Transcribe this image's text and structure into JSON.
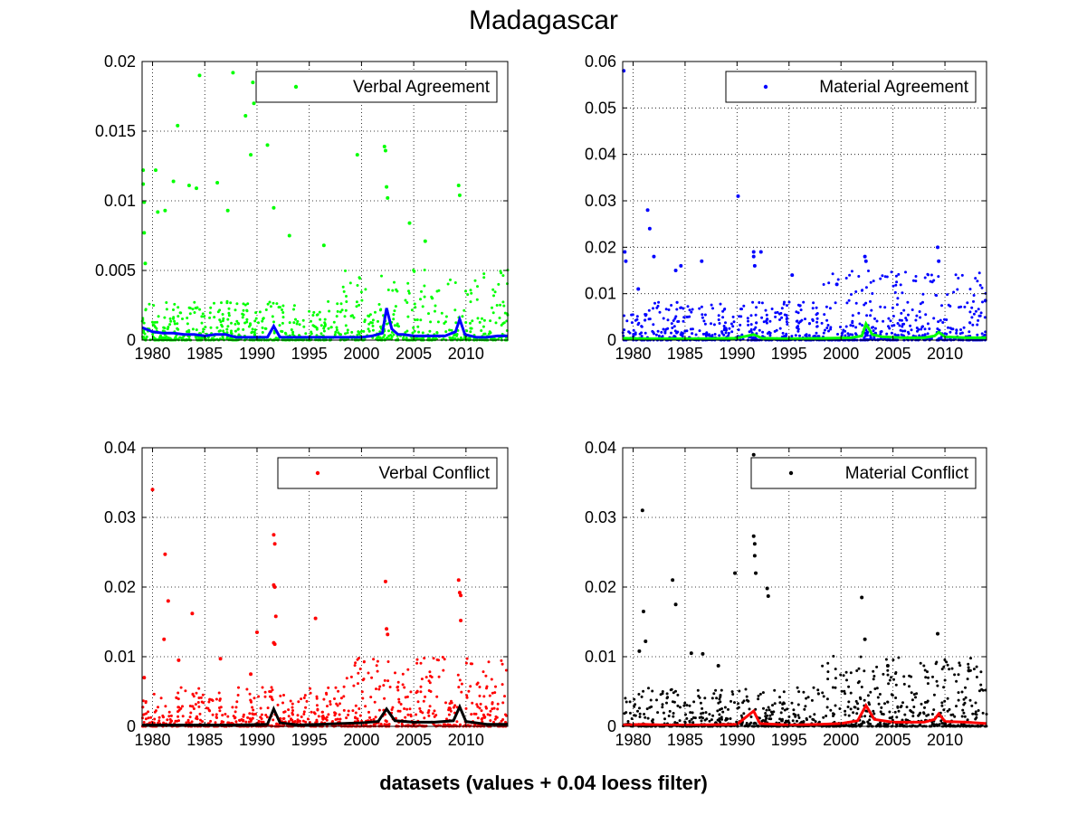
{
  "figure": {
    "title": "Madagascar",
    "xlabel": "datasets (values + 0.04 loess filter)"
  },
  "chart_data": [
    {
      "type": "scatter",
      "legend": "Verbal Agreement",
      "legend_position": "top-right",
      "grid": true,
      "marker_color": "#00ff00",
      "trend_color": "#0000ff",
      "xlim": [
        1979,
        2014
      ],
      "ylim": [
        0,
        0.02
      ],
      "xticks": [
        1980,
        1985,
        1990,
        1995,
        2000,
        2005,
        2010
      ],
      "yticks": [
        0,
        0.005,
        0.01,
        0.015,
        0.02
      ],
      "ytick_labels": [
        "0",
        "0.005",
        "0.01",
        "0.015",
        "0.02"
      ],
      "points": [
        [
          1979.1,
          0.0122
        ],
        [
          1979.1,
          0.0112
        ],
        [
          1979.2,
          0.0099
        ],
        [
          1979.2,
          0.0077
        ],
        [
          1979.3,
          0.0055
        ],
        [
          1980.3,
          0.0122
        ],
        [
          1980.5,
          0.0092
        ],
        [
          1981.2,
          0.0093
        ],
        [
          1982.0,
          0.0114
        ],
        [
          1982.4,
          0.0154
        ],
        [
          1983.5,
          0.0111
        ],
        [
          1984.2,
          0.0109
        ],
        [
          1984.5,
          0.019
        ],
        [
          1986.2,
          0.0113
        ],
        [
          1987.2,
          0.0093
        ],
        [
          1987.7,
          0.0192
        ],
        [
          1988.9,
          0.0161
        ],
        [
          1989.4,
          0.0133
        ],
        [
          1989.6,
          0.0185
        ],
        [
          1989.7,
          0.017
        ],
        [
          1991.0,
          0.014
        ],
        [
          1991.6,
          0.0095
        ],
        [
          1999.6,
          0.0133
        ],
        [
          2002.2,
          0.0139
        ],
        [
          2002.3,
          0.0136
        ],
        [
          2002.4,
          0.011
        ],
        [
          2002.5,
          0.0102
        ],
        [
          2009.3,
          0.0111
        ],
        [
          2009.4,
          0.0104
        ],
        [
          1993.1,
          0.0075
        ],
        [
          1996.4,
          0.0068
        ],
        [
          2004.6,
          0.0084
        ],
        [
          2006.1,
          0.0071
        ]
      ],
      "trend": [
        [
          1979,
          0.0009
        ],
        [
          1980,
          0.0006
        ],
        [
          1981,
          0.0005
        ],
        [
          1982,
          0.0005
        ],
        [
          1983,
          0.0004
        ],
        [
          1984,
          0.0004
        ],
        [
          1985,
          0.0003
        ],
        [
          1986,
          0.0004
        ],
        [
          1987,
          0.0004
        ],
        [
          1988,
          0.0002
        ],
        [
          1989,
          0.0002
        ],
        [
          1990,
          0.0002
        ],
        [
          1991,
          0.0002
        ],
        [
          1991.6,
          0.001
        ],
        [
          1992.2,
          0.0002
        ],
        [
          1993,
          0.0002
        ],
        [
          1994,
          0.0002
        ],
        [
          1995,
          0.0002
        ],
        [
          1996,
          0.0002
        ],
        [
          1997,
          0.0002
        ],
        [
          1998,
          0.0002
        ],
        [
          1999,
          0.0002
        ],
        [
          2000,
          0.0002
        ],
        [
          2001,
          0.0003
        ],
        [
          2002,
          0.0005
        ],
        [
          2002.4,
          0.0023
        ],
        [
          2002.9,
          0.0008
        ],
        [
          2003.5,
          0.0004
        ],
        [
          2004,
          0.0004
        ],
        [
          2005,
          0.0003
        ],
        [
          2006,
          0.0003
        ],
        [
          2007,
          0.0003
        ],
        [
          2008,
          0.0003
        ],
        [
          2009,
          0.0006
        ],
        [
          2009.4,
          0.0015
        ],
        [
          2009.9,
          0.0004
        ],
        [
          2011,
          0.0002
        ],
        [
          2012,
          0.0002
        ],
        [
          2013,
          0.0003
        ],
        [
          2014,
          0.0003
        ]
      ]
    },
    {
      "type": "scatter",
      "legend": "Material Agreement",
      "legend_position": "top-right",
      "grid": true,
      "marker_color": "#0000ff",
      "trend_color": "#00ff00",
      "xlim": [
        1979,
        2014
      ],
      "ylim": [
        0,
        0.06
      ],
      "xticks": [
        1980,
        1985,
        1990,
        1995,
        2000,
        2005,
        2010
      ],
      "yticks": [
        0,
        0.01,
        0.02,
        0.03,
        0.04,
        0.05,
        0.06
      ],
      "ytick_labels": [
        "0",
        "0.01",
        "0.02",
        "0.03",
        "0.04",
        "0.05",
        "0.06"
      ],
      "points": [
        [
          1979.1,
          0.058
        ],
        [
          1979.2,
          0.019
        ],
        [
          1979.3,
          0.017
        ],
        [
          1980.5,
          0.011
        ],
        [
          1981.4,
          0.028
        ],
        [
          1981.6,
          0.024
        ],
        [
          1982.0,
          0.018
        ],
        [
          1984.1,
          0.015
        ],
        [
          1984.6,
          0.016
        ],
        [
          1986.6,
          0.017
        ],
        [
          1990.1,
          0.031
        ],
        [
          1991.6,
          0.019
        ],
        [
          1991.6,
          0.018
        ],
        [
          1991.7,
          0.016
        ],
        [
          1992.3,
          0.019
        ],
        [
          1995.3,
          0.014
        ],
        [
          1999.6,
          0.012
        ],
        [
          2002.3,
          0.018
        ],
        [
          2002.4,
          0.017
        ],
        [
          2009.3,
          0.02
        ],
        [
          2009.4,
          0.017
        ],
        [
          2013.9,
          0.0085
        ]
      ],
      "trend": [
        [
          1979,
          0.0004
        ],
        [
          1981,
          0.0003
        ],
        [
          1984,
          0.0003
        ],
        [
          1986,
          0.0003
        ],
        [
          1990,
          0.0004
        ],
        [
          1991.6,
          0.0012
        ],
        [
          1992.4,
          0.0004
        ],
        [
          1995,
          0.0003
        ],
        [
          1999,
          0.0004
        ],
        [
          2001,
          0.0005
        ],
        [
          2002,
          0.0009
        ],
        [
          2002.4,
          0.0035
        ],
        [
          2003,
          0.0012
        ],
        [
          2004,
          0.0007
        ],
        [
          2006,
          0.0005
        ],
        [
          2008,
          0.0005
        ],
        [
          2009,
          0.0009
        ],
        [
          2009.4,
          0.0017
        ],
        [
          2010,
          0.0007
        ],
        [
          2012,
          0.0005
        ],
        [
          2014,
          0.0005
        ]
      ]
    },
    {
      "type": "scatter",
      "legend": "Verbal Conflict",
      "legend_position": "top-right",
      "grid": true,
      "marker_color": "#ff0000",
      "trend_color": "#000000",
      "xlim": [
        1979,
        2014
      ],
      "ylim": [
        0,
        0.04
      ],
      "xticks": [
        1980,
        1985,
        1990,
        1995,
        2000,
        2005,
        2010
      ],
      "yticks": [
        0,
        0.01,
        0.02,
        0.03,
        0.04
      ],
      "ytick_labels": [
        "0",
        "0.01",
        "0.02",
        "0.03",
        "0.04"
      ],
      "points": [
        [
          1980.0,
          0.034
        ],
        [
          1981.2,
          0.0247
        ],
        [
          1981.5,
          0.018
        ],
        [
          1981.1,
          0.0125
        ],
        [
          1983.8,
          0.0162
        ],
        [
          1982.5,
          0.0095
        ],
        [
          1986.5,
          0.0097
        ],
        [
          1989.4,
          0.0075
        ],
        [
          1990.0,
          0.0135
        ],
        [
          1991.6,
          0.0275
        ],
        [
          1991.7,
          0.0262
        ],
        [
          1991.6,
          0.0203
        ],
        [
          1991.7,
          0.02
        ],
        [
          1991.8,
          0.0158
        ],
        [
          1995.6,
          0.0155
        ],
        [
          2002.3,
          0.0208
        ],
        [
          2002.4,
          0.014
        ],
        [
          2002.5,
          0.0132
        ],
        [
          2009.3,
          0.021
        ],
        [
          2009.4,
          0.0192
        ],
        [
          2009.5,
          0.0188
        ],
        [
          2009.5,
          0.0152
        ],
        [
          1979.2,
          0.007
        ],
        [
          1991.6,
          0.012
        ],
        [
          1991.7,
          0.0118
        ]
      ],
      "trend": [
        [
          1979,
          0.0002
        ],
        [
          1982,
          0.0002
        ],
        [
          1985,
          0.0002
        ],
        [
          1988,
          0.0002
        ],
        [
          1991,
          0.0003
        ],
        [
          1991.6,
          0.0025
        ],
        [
          1992.2,
          0.0005
        ],
        [
          1994,
          0.0002
        ],
        [
          1996,
          0.0003
        ],
        [
          1998,
          0.0004
        ],
        [
          2000,
          0.0005
        ],
        [
          2001.6,
          0.0007
        ],
        [
          2002.4,
          0.0025
        ],
        [
          2003.2,
          0.0008
        ],
        [
          2005,
          0.0006
        ],
        [
          2007,
          0.0006
        ],
        [
          2008.8,
          0.0008
        ],
        [
          2009.4,
          0.0028
        ],
        [
          2010,
          0.0007
        ],
        [
          2012,
          0.0003
        ],
        [
          2014,
          0.0003
        ]
      ]
    },
    {
      "type": "scatter",
      "legend": "Material Conflict",
      "legend_position": "top-right",
      "grid": true,
      "marker_color": "#000000",
      "trend_color": "#ff0000",
      "xlim": [
        1979,
        2014
      ],
      "ylim": [
        0,
        0.04
      ],
      "xticks": [
        1980,
        1985,
        1990,
        1995,
        2000,
        2005,
        2010
      ],
      "yticks": [
        0,
        0.01,
        0.02,
        0.03,
        0.04
      ],
      "ytick_labels": [
        "0",
        "0.01",
        "0.02",
        "0.03",
        "0.04"
      ],
      "points": [
        [
          1980.9,
          0.031
        ],
        [
          1981.0,
          0.0165
        ],
        [
          1981.2,
          0.0122
        ],
        [
          1980.6,
          0.0108
        ],
        [
          1983.8,
          0.021
        ],
        [
          1984.1,
          0.0175
        ],
        [
          1989.8,
          0.022
        ],
        [
          1991.6,
          0.039
        ],
        [
          1991.6,
          0.0273
        ],
        [
          1991.7,
          0.0262
        ],
        [
          1991.7,
          0.0245
        ],
        [
          1991.8,
          0.022
        ],
        [
          1992.9,
          0.0198
        ],
        [
          1993.0,
          0.0187
        ],
        [
          2002.0,
          0.0185
        ],
        [
          2002.3,
          0.0125
        ],
        [
          2009.3,
          0.0133
        ],
        [
          1985.6,
          0.0105
        ],
        [
          1986.7,
          0.0104
        ],
        [
          1988.2,
          0.0087
        ],
        [
          2004.5,
          0.0087
        ],
        [
          2012.3,
          0.008
        ]
      ],
      "trend": [
        [
          1979,
          0.0002
        ],
        [
          1981,
          0.0003
        ],
        [
          1983,
          0.0002
        ],
        [
          1986,
          0.0002
        ],
        [
          1990,
          0.0003
        ],
        [
          1991.6,
          0.0022
        ],
        [
          1992.2,
          0.0004
        ],
        [
          1995,
          0.0002
        ],
        [
          1998,
          0.0003
        ],
        [
          2000,
          0.0004
        ],
        [
          2001.6,
          0.0008
        ],
        [
          2002.4,
          0.003
        ],
        [
          2003.2,
          0.001
        ],
        [
          2005,
          0.0006
        ],
        [
          2008,
          0.0006
        ],
        [
          2009,
          0.001
        ],
        [
          2009.4,
          0.0018
        ],
        [
          2010,
          0.0007
        ],
        [
          2012,
          0.0006
        ],
        [
          2014,
          0.0004
        ]
      ]
    }
  ]
}
